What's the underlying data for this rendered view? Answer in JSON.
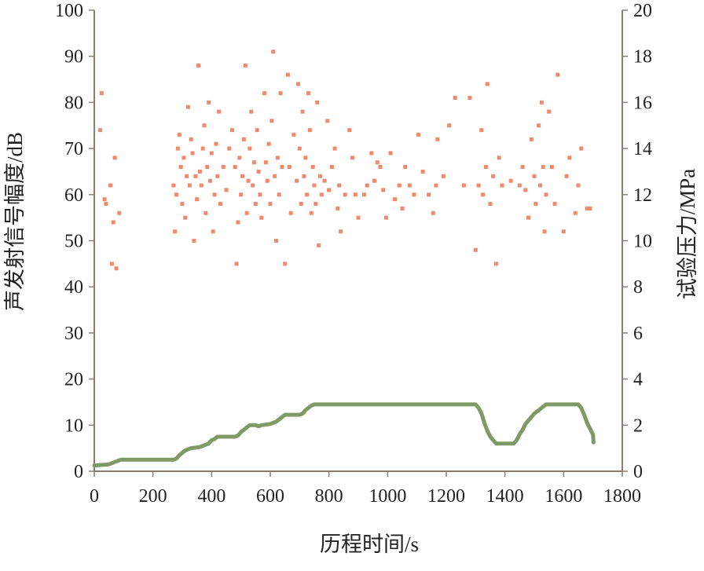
{
  "chart_data": {
    "type": "scatter+line",
    "xlabel": "历程时间/s",
    "ylabel_left": "声发射信号幅度/dB",
    "ylabel_right": "试验压力/MPa",
    "xlim": [
      0,
      1800
    ],
    "ylim_left": [
      0,
      100
    ],
    "ylim_right": [
      0,
      20
    ],
    "x_ticks": [
      0,
      200,
      400,
      600,
      800,
      1000,
      1200,
      1400,
      1600,
      1800
    ],
    "y_ticks_left": [
      0,
      10,
      20,
      30,
      40,
      50,
      60,
      70,
      80,
      90,
      100
    ],
    "y_ticks_right": [
      0,
      2,
      4,
      6,
      8,
      10,
      12,
      14,
      16,
      18,
      20
    ],
    "grid": false,
    "colors": {
      "scatter": "#f08a6b",
      "line": "#7f9a65",
      "axis": "#8a7f72"
    },
    "series": [
      {
        "axis": "left",
        "kind": "scatter",
        "points": [
          [
            20,
            74
          ],
          [
            25,
            82
          ],
          [
            35,
            59
          ],
          [
            40,
            58
          ],
          [
            55,
            62
          ],
          [
            60,
            45
          ],
          [
            65,
            54
          ],
          [
            70,
            68
          ],
          [
            75,
            44
          ],
          [
            85,
            56
          ],
          [
            270,
            62
          ],
          [
            275,
            52
          ],
          [
            280,
            60
          ],
          [
            285,
            70
          ],
          [
            290,
            73
          ],
          [
            295,
            66
          ],
          [
            300,
            58
          ],
          [
            305,
            68
          ],
          [
            310,
            55
          ],
          [
            315,
            64
          ],
          [
            320,
            79
          ],
          [
            325,
            62
          ],
          [
            330,
            72
          ],
          [
            335,
            69
          ],
          [
            340,
            50
          ],
          [
            345,
            64
          ],
          [
            350,
            59
          ],
          [
            355,
            88
          ],
          [
            360,
            65
          ],
          [
            365,
            62
          ],
          [
            370,
            70
          ],
          [
            375,
            75
          ],
          [
            380,
            56
          ],
          [
            385,
            66
          ],
          [
            390,
            80
          ],
          [
            395,
            63
          ],
          [
            400,
            69
          ],
          [
            405,
            52
          ],
          [
            410,
            60
          ],
          [
            415,
            71
          ],
          [
            420,
            64
          ],
          [
            425,
            78
          ],
          [
            430,
            58
          ],
          [
            440,
            66
          ],
          [
            450,
            61
          ],
          [
            460,
            70
          ],
          [
            470,
            74
          ],
          [
            480,
            66
          ],
          [
            485,
            45
          ],
          [
            490,
            54
          ],
          [
            495,
            68
          ],
          [
            500,
            60
          ],
          [
            505,
            64
          ],
          [
            510,
            72
          ],
          [
            515,
            88
          ],
          [
            520,
            56
          ],
          [
            525,
            63
          ],
          [
            530,
            70
          ],
          [
            535,
            78
          ],
          [
            540,
            62
          ],
          [
            545,
            67
          ],
          [
            550,
            58
          ],
          [
            555,
            74
          ],
          [
            560,
            65
          ],
          [
            565,
            60
          ],
          [
            570,
            55
          ],
          [
            580,
            82
          ],
          [
            585,
            67
          ],
          [
            590,
            63
          ],
          [
            595,
            71
          ],
          [
            600,
            58
          ],
          [
            605,
            76
          ],
          [
            610,
            91
          ],
          [
            615,
            64
          ],
          [
            620,
            50
          ],
          [
            625,
            68
          ],
          [
            630,
            60
          ],
          [
            635,
            82
          ],
          [
            640,
            66
          ],
          [
            650,
            45
          ],
          [
            660,
            86
          ],
          [
            665,
            66
          ],
          [
            670,
            56
          ],
          [
            680,
            73
          ],
          [
            690,
            63
          ],
          [
            695,
            84
          ],
          [
            700,
            70
          ],
          [
            705,
            58
          ],
          [
            710,
            78
          ],
          [
            715,
            64
          ],
          [
            720,
            68
          ],
          [
            725,
            60
          ],
          [
            730,
            82
          ],
          [
            735,
            74
          ],
          [
            740,
            56
          ],
          [
            745,
            66
          ],
          [
            750,
            62
          ],
          [
            755,
            58
          ],
          [
            760,
            80
          ],
          [
            765,
            49
          ],
          [
            770,
            64
          ],
          [
            775,
            60
          ],
          [
            785,
            63
          ],
          [
            795,
            76
          ],
          [
            800,
            61
          ],
          [
            810,
            66
          ],
          [
            820,
            70
          ],
          [
            830,
            57
          ],
          [
            835,
            62
          ],
          [
            840,
            52
          ],
          [
            855,
            60
          ],
          [
            870,
            74
          ],
          [
            880,
            68
          ],
          [
            890,
            60
          ],
          [
            900,
            55
          ],
          [
            920,
            60
          ],
          [
            930,
            62
          ],
          [
            945,
            69
          ],
          [
            955,
            63
          ],
          [
            965,
            67
          ],
          [
            975,
            66
          ],
          [
            985,
            61
          ],
          [
            995,
            55
          ],
          [
            1010,
            69
          ],
          [
            1025,
            59
          ],
          [
            1040,
            62
          ],
          [
            1050,
            57
          ],
          [
            1060,
            66
          ],
          [
            1075,
            62
          ],
          [
            1090,
            60
          ],
          [
            1105,
            73
          ],
          [
            1120,
            65
          ],
          [
            1140,
            60
          ],
          [
            1155,
            56
          ],
          [
            1165,
            62
          ],
          [
            1170,
            72
          ],
          [
            1190,
            64
          ],
          [
            1210,
            75
          ],
          [
            1230,
            81
          ],
          [
            1260,
            62
          ],
          [
            1280,
            81
          ],
          [
            1300,
            48
          ],
          [
            1310,
            62
          ],
          [
            1320,
            74
          ],
          [
            1325,
            60
          ],
          [
            1335,
            66
          ],
          [
            1340,
            84
          ],
          [
            1350,
            58
          ],
          [
            1360,
            64
          ],
          [
            1370,
            45
          ],
          [
            1380,
            68
          ],
          [
            1390,
            62
          ],
          [
            1420,
            63
          ],
          [
            1450,
            62
          ],
          [
            1460,
            66
          ],
          [
            1470,
            61
          ],
          [
            1480,
            55
          ],
          [
            1490,
            72
          ],
          [
            1500,
            64
          ],
          [
            1505,
            58
          ],
          [
            1515,
            75
          ],
          [
            1520,
            62
          ],
          [
            1525,
            80
          ],
          [
            1530,
            66
          ],
          [
            1535,
            52
          ],
          [
            1540,
            60
          ],
          [
            1550,
            78
          ],
          [
            1560,
            66
          ],
          [
            1570,
            58
          ],
          [
            1580,
            86
          ],
          [
            1600,
            52
          ],
          [
            1610,
            64
          ],
          [
            1620,
            68
          ],
          [
            1640,
            56
          ],
          [
            1650,
            62
          ],
          [
            1660,
            70
          ],
          [
            1680,
            57
          ],
          [
            1690,
            57
          ]
        ]
      },
      {
        "axis": "right",
        "kind": "line",
        "points": [
          [
            0,
            0.25
          ],
          [
            50,
            0.3
          ],
          [
            60,
            0.35
          ],
          [
            80,
            0.45
          ],
          [
            90,
            0.5
          ],
          [
            100,
            0.5
          ],
          [
            260,
            0.5
          ],
          [
            270,
            0.5
          ],
          [
            280,
            0.55
          ],
          [
            290,
            0.7
          ],
          [
            300,
            0.8
          ],
          [
            310,
            0.9
          ],
          [
            320,
            0.95
          ],
          [
            330,
            1.0
          ],
          [
            360,
            1.05
          ],
          [
            370,
            1.1
          ],
          [
            380,
            1.15
          ],
          [
            390,
            1.2
          ],
          [
            400,
            1.35
          ],
          [
            410,
            1.4
          ],
          [
            420,
            1.5
          ],
          [
            430,
            1.5
          ],
          [
            480,
            1.5
          ],
          [
            490,
            1.55
          ],
          [
            500,
            1.7
          ],
          [
            510,
            1.8
          ],
          [
            520,
            1.9
          ],
          [
            530,
            2.0
          ],
          [
            550,
            2.0
          ],
          [
            560,
            1.95
          ],
          [
            570,
            2.0
          ],
          [
            600,
            2.05
          ],
          [
            610,
            2.1
          ],
          [
            620,
            2.15
          ],
          [
            630,
            2.25
          ],
          [
            640,
            2.35
          ],
          [
            650,
            2.45
          ],
          [
            700,
            2.45
          ],
          [
            710,
            2.5
          ],
          [
            720,
            2.65
          ],
          [
            730,
            2.75
          ],
          [
            740,
            2.85
          ],
          [
            750,
            2.9
          ],
          [
            1300,
            2.9
          ],
          [
            1310,
            2.75
          ],
          [
            1320,
            2.5
          ],
          [
            1330,
            2.1
          ],
          [
            1340,
            1.75
          ],
          [
            1350,
            1.5
          ],
          [
            1360,
            1.35
          ],
          [
            1370,
            1.2
          ],
          [
            1380,
            1.2
          ],
          [
            1430,
            1.2
          ],
          [
            1440,
            1.35
          ],
          [
            1450,
            1.6
          ],
          [
            1460,
            1.8
          ],
          [
            1470,
            2.05
          ],
          [
            1480,
            2.2
          ],
          [
            1490,
            2.35
          ],
          [
            1500,
            2.5
          ],
          [
            1520,
            2.7
          ],
          [
            1530,
            2.8
          ],
          [
            1540,
            2.9
          ],
          [
            1650,
            2.9
          ],
          [
            1660,
            2.75
          ],
          [
            1670,
            2.45
          ],
          [
            1680,
            2.1
          ],
          [
            1690,
            1.85
          ],
          [
            1700,
            1.6
          ],
          [
            1702,
            1.25
          ]
        ]
      }
    ]
  }
}
